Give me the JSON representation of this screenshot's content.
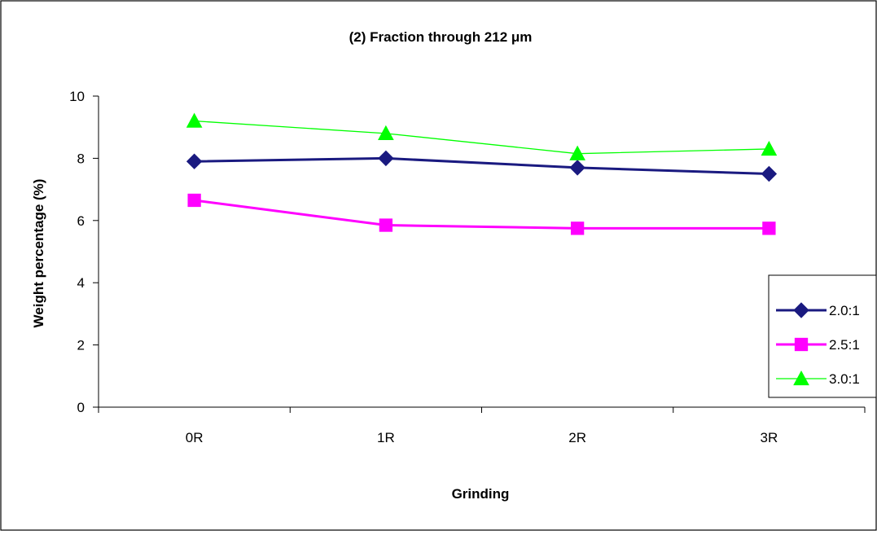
{
  "chart_data": {
    "type": "line",
    "title": "(2) Fraction through 212 μm",
    "xlabel": "Grinding",
    "ylabel": "Weight percentage (%)",
    "categories": [
      "0R",
      "1R",
      "2R",
      "3R"
    ],
    "ylim": [
      0,
      10
    ],
    "yticks": [
      0,
      2,
      4,
      6,
      8,
      10
    ],
    "grid": false,
    "legend_position": "right",
    "series": [
      {
        "name": "2.0:1",
        "values": [
          7.9,
          8.0,
          7.7,
          7.5
        ],
        "color": "#1a1a80",
        "marker": "diamond"
      },
      {
        "name": "2.5:1",
        "values": [
          6.65,
          5.85,
          5.75,
          5.75
        ],
        "color": "#ff00ff",
        "marker": "square"
      },
      {
        "name": "3.0:1",
        "values": [
          9.2,
          8.8,
          8.15,
          8.3
        ],
        "color": "#00ff00",
        "marker": "triangle"
      }
    ]
  }
}
